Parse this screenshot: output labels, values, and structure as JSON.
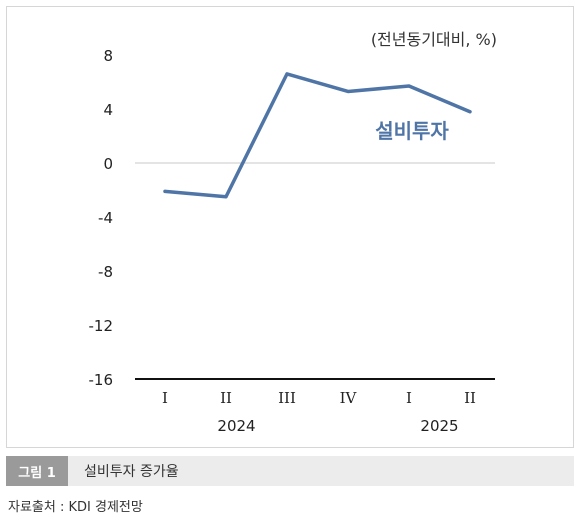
{
  "chart_data": {
    "type": "line",
    "unit_note": "(전년동기대비, %)",
    "categories": [
      "I",
      "II",
      "III",
      "IV",
      "I",
      "II"
    ],
    "year_labels": [
      "2024",
      "2025"
    ],
    "series": [
      {
        "name": "설비투자",
        "values": [
          -2.1,
          -2.5,
          6.6,
          5.3,
          5.7,
          3.8
        ]
      }
    ],
    "yticks": [
      8,
      4,
      0,
      -4,
      -8,
      -12,
      -16
    ],
    "ylim": [
      -16,
      8
    ],
    "series_color": "#4f75a7",
    "zero_line_color": "#c8c8c8"
  },
  "caption": {
    "label": "그림 1",
    "text": "설비투자 증가율"
  },
  "source": "자료출처 : KDI 경제전망"
}
